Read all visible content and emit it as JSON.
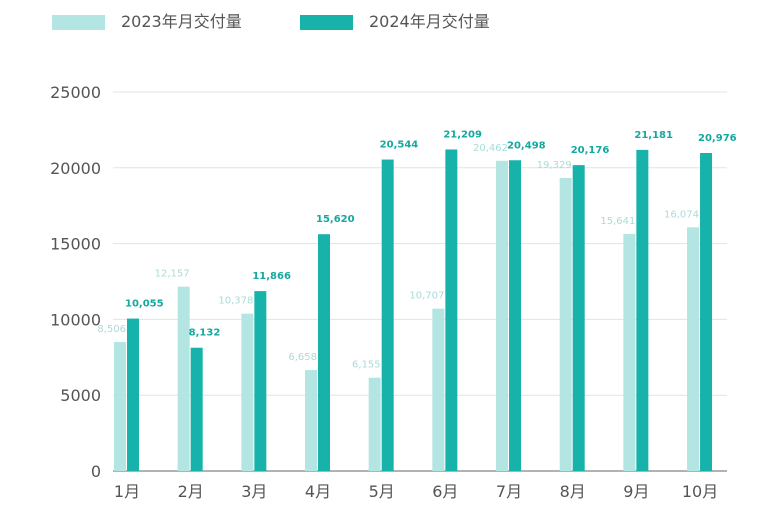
{
  "colors": {
    "series_2023": "#b3e5e2",
    "series_2024": "#17b3aa",
    "label_2023": "#a9dcd8",
    "label_2024": "#14a89f",
    "axis_text": "#555555",
    "gridline": "#e3e3e3",
    "axis_line": "#666666"
  },
  "chart_data": {
    "type": "bar",
    "categories": [
      "1月",
      "2月",
      "3月",
      "4月",
      "5月",
      "6月",
      "7月",
      "8月",
      "9月",
      "10月"
    ],
    "series": [
      {
        "name": "2023年月交付量",
        "values": [
          8506,
          12157,
          10378,
          6658,
          6155,
          10707,
          20462,
          19329,
          15641,
          16074
        ],
        "data_labels": [
          "8,506",
          "12,157",
          "10,378",
          "6,658",
          "6,155",
          "10,707",
          "20,462",
          "19,329",
          "15,641",
          "16,074"
        ]
      },
      {
        "name": "2024年月交付量",
        "values": [
          10055,
          8132,
          11866,
          15620,
          20544,
          21209,
          20498,
          20176,
          21181,
          20976
        ],
        "data_labels": [
          "10,055",
          "8,132",
          "11,866",
          "15,620",
          "20,544",
          "21,209",
          "20,498",
          "20,176",
          "21,181",
          "20,976"
        ]
      }
    ],
    "ylim": [
      0,
      25000
    ],
    "yticks": [
      0,
      5000,
      10000,
      15000,
      20000,
      25000
    ],
    "grid": true,
    "legend": "top-left"
  }
}
